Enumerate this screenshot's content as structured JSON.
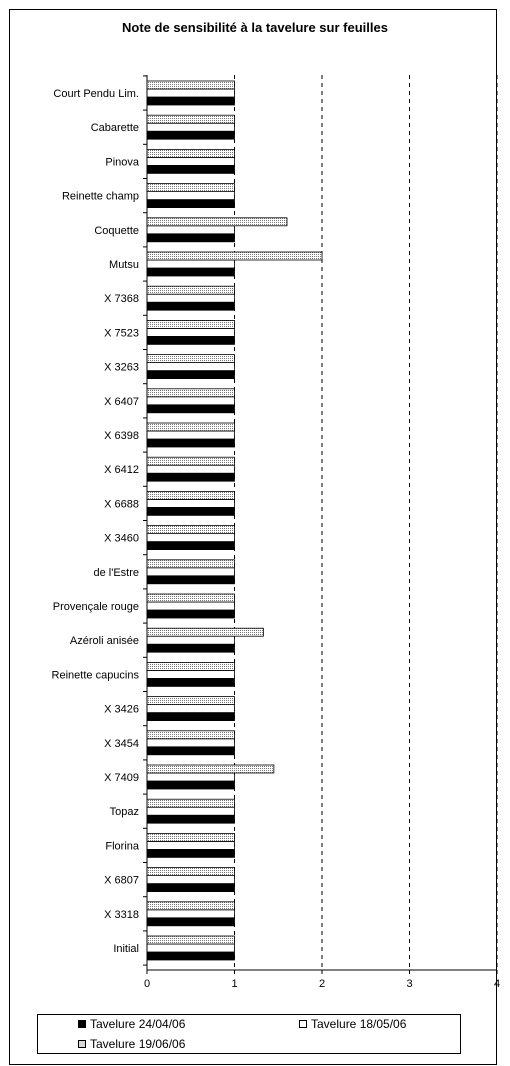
{
  "chart_data": {
    "type": "bar",
    "orientation": "horizontal",
    "title": "Note de sensibilité à la tavelure sur feuilles",
    "categories": [
      "Court Pendu Lim.",
      "Cabarette",
      "Pinova",
      "Reinette champ",
      "Coquette",
      "Mutsu",
      "X 7368",
      "X 7523",
      "X 3263",
      "X 6407",
      "X 6398",
      "X 6412",
      "X 6688",
      "X 3460",
      "de l'Estre",
      "Provençale rouge",
      "Azéroli anisée",
      "Reinette capucins",
      "X 3426",
      "X 3454",
      "X 7409",
      "Topaz",
      "Florina",
      "X 6807",
      "X 3318",
      "Initial"
    ],
    "series": [
      {
        "name": "Tavelure 24/04/06",
        "color": "#000000",
        "values": [
          1,
          1,
          1,
          1,
          1,
          1,
          1,
          1,
          1,
          1,
          1,
          1,
          1,
          1,
          1,
          1,
          1,
          1,
          1,
          1,
          1,
          1,
          1,
          1,
          1,
          1
        ]
      },
      {
        "name": "Tavelure 18/05/06",
        "color": "#ffffff",
        "values": [
          1,
          1,
          1,
          1,
          1,
          1,
          1,
          1,
          1,
          1,
          1,
          1,
          1,
          1,
          1,
          1,
          1,
          1,
          1,
          1,
          1,
          1,
          1,
          1,
          1,
          1
        ]
      },
      {
        "name": "Tavelure 19/06/06",
        "color": "#dcdcdc",
        "values": [
          1,
          1,
          1,
          1,
          1.6,
          2,
          1,
          1,
          1,
          1,
          1,
          1,
          1,
          1,
          1,
          1,
          1.33,
          1,
          1,
          1,
          1.45,
          1,
          1,
          1,
          1,
          1
        ]
      }
    ],
    "xlim": [
      0,
      4
    ],
    "xticks": [
      "0",
      "1",
      "2",
      "3",
      "4"
    ],
    "grid": "dashed vertical",
    "legend": "bottom"
  }
}
